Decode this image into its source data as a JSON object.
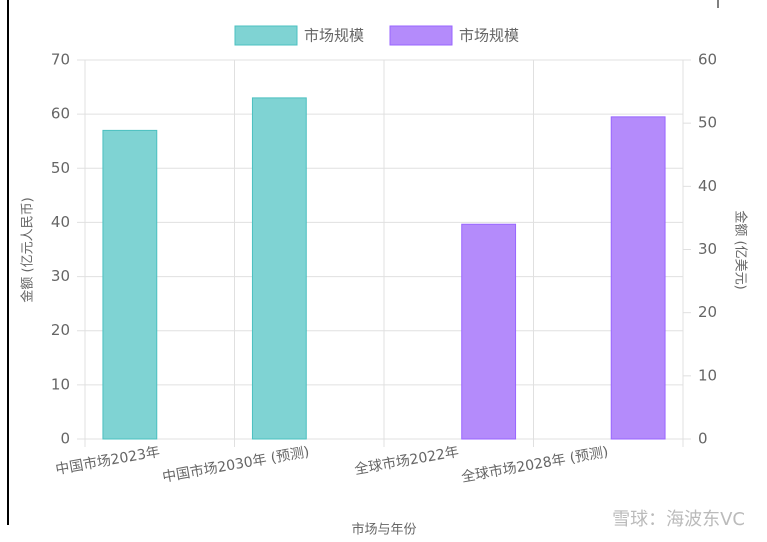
{
  "chart_data": {
    "type": "bar",
    "categories": [
      "中国市场2023年",
      "中国市场2030年 (预测)",
      "全球市场2022年",
      "全球市场2028年 (预测)"
    ],
    "series": [
      {
        "name": "市场规模",
        "color": "#7fd3d3",
        "border": "#4bc0c0",
        "values": [
          57,
          63,
          null,
          null
        ]
      },
      {
        "name": "市场规模",
        "color": "#b48bfb",
        "border": "#9966ff",
        "axis": "y2",
        "values": [
          null,
          null,
          34,
          51
        ]
      }
    ],
    "ylim": [
      0,
      70
    ],
    "yticks": [
      0,
      10,
      20,
      30,
      40,
      50,
      60,
      70
    ],
    "y2lim": [
      0,
      60
    ],
    "y2ticks": [
      0,
      10,
      20,
      30,
      40,
      50,
      60
    ],
    "ylabel": "金额 (亿元人民币)",
    "y2label": "金额 (亿美元)",
    "xlabel": "市场与年份",
    "grid": true,
    "legend": "top",
    "watermark": "雪球：海波东VC"
  }
}
